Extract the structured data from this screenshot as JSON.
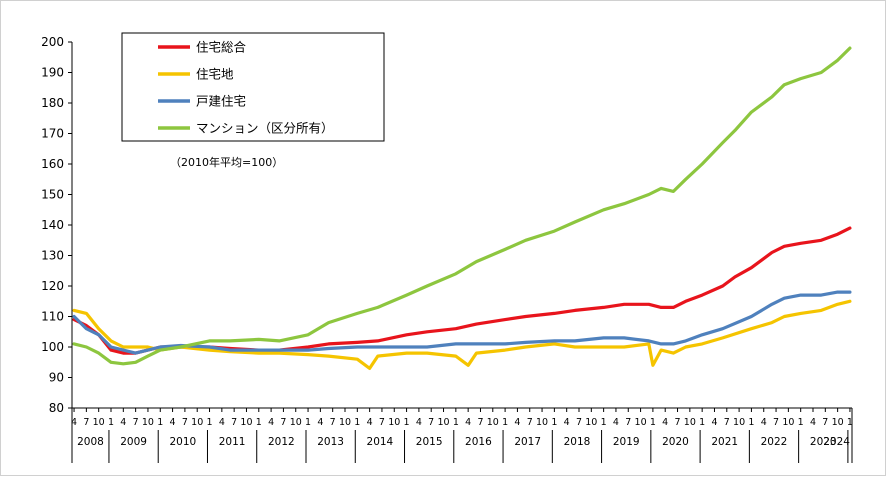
{
  "chart_data": {
    "type": "line",
    "note": "（2010年平均=100）",
    "ylim": [
      80,
      200
    ],
    "y_ticks": [
      80,
      90,
      100,
      110,
      120,
      130,
      140,
      150,
      160,
      170,
      180,
      190,
      200
    ],
    "grid": false,
    "legend_position": "top-left",
    "x_start": "2008-04",
    "x_end": "2024-01",
    "month_tick_labels": [
      "4",
      "7",
      "10",
      "1"
    ],
    "year_labels": [
      "2008",
      "2009",
      "2010",
      "2011",
      "2012",
      "2013",
      "2014",
      "2015",
      "2016",
      "2017",
      "2018",
      "2019",
      "2020",
      "2021",
      "2022",
      "2023",
      "2024"
    ],
    "series": [
      {
        "name": "住宅総合",
        "color": "#e8141c",
        "points": [
          [
            "2008-04",
            109
          ],
          [
            "2008-07",
            107
          ],
          [
            "2008-10",
            104
          ],
          [
            "2009-01",
            99
          ],
          [
            "2009-04",
            98
          ],
          [
            "2009-07",
            98
          ],
          [
            "2009-10",
            99
          ],
          [
            "2010-01",
            100
          ],
          [
            "2010-06",
            100
          ],
          [
            "2011-01",
            100
          ],
          [
            "2011-06",
            99.5
          ],
          [
            "2012-01",
            99
          ],
          [
            "2012-06",
            99
          ],
          [
            "2013-01",
            100
          ],
          [
            "2013-06",
            101
          ],
          [
            "2014-01",
            101.5
          ],
          [
            "2014-06",
            102
          ],
          [
            "2015-01",
            104
          ],
          [
            "2015-06",
            105
          ],
          [
            "2016-01",
            106
          ],
          [
            "2016-06",
            107.5
          ],
          [
            "2017-01",
            109
          ],
          [
            "2017-06",
            110
          ],
          [
            "2018-01",
            111
          ],
          [
            "2018-06",
            112
          ],
          [
            "2019-01",
            113
          ],
          [
            "2019-06",
            114
          ],
          [
            "2019-12",
            114
          ],
          [
            "2020-03",
            113
          ],
          [
            "2020-06",
            113
          ],
          [
            "2020-09",
            115
          ],
          [
            "2021-01",
            117
          ],
          [
            "2021-06",
            120
          ],
          [
            "2021-09",
            123
          ],
          [
            "2022-01",
            126
          ],
          [
            "2022-06",
            131
          ],
          [
            "2022-09",
            133
          ],
          [
            "2023-01",
            134
          ],
          [
            "2023-06",
            135
          ],
          [
            "2023-10",
            137
          ],
          [
            "2024-01",
            139
          ]
        ]
      },
      {
        "name": "住宅地",
        "color": "#f5c400",
        "points": [
          [
            "2008-04",
            112
          ],
          [
            "2008-07",
            111
          ],
          [
            "2008-10",
            106
          ],
          [
            "2009-01",
            102
          ],
          [
            "2009-04",
            100
          ],
          [
            "2009-07",
            100
          ],
          [
            "2009-10",
            100
          ],
          [
            "2010-01",
            99
          ],
          [
            "2010-06",
            100
          ],
          [
            "2011-01",
            99
          ],
          [
            "2011-06",
            98.5
          ],
          [
            "2012-01",
            98
          ],
          [
            "2012-06",
            98
          ],
          [
            "2013-01",
            97.5
          ],
          [
            "2013-06",
            97
          ],
          [
            "2014-01",
            96
          ],
          [
            "2014-04",
            93
          ],
          [
            "2014-06",
            97
          ],
          [
            "2015-01",
            98
          ],
          [
            "2015-06",
            98
          ],
          [
            "2016-01",
            97
          ],
          [
            "2016-04",
            94
          ],
          [
            "2016-06",
            98
          ],
          [
            "2017-01",
            99
          ],
          [
            "2017-06",
            100
          ],
          [
            "2018-01",
            101
          ],
          [
            "2018-06",
            100
          ],
          [
            "2019-01",
            100
          ],
          [
            "2019-06",
            100
          ],
          [
            "2019-12",
            101
          ],
          [
            "2020-01",
            94
          ],
          [
            "2020-03",
            99
          ],
          [
            "2020-06",
            98
          ],
          [
            "2020-09",
            100
          ],
          [
            "2021-01",
            101
          ],
          [
            "2021-06",
            103
          ],
          [
            "2022-01",
            106
          ],
          [
            "2022-06",
            108
          ],
          [
            "2022-09",
            110
          ],
          [
            "2023-01",
            111
          ],
          [
            "2023-06",
            112
          ],
          [
            "2023-10",
            114
          ],
          [
            "2024-01",
            115
          ]
        ]
      },
      {
        "name": "戸建住宅",
        "color": "#4f81bd",
        "points": [
          [
            "2008-04",
            110
          ],
          [
            "2008-07",
            106
          ],
          [
            "2008-10",
            104
          ],
          [
            "2009-01",
            100
          ],
          [
            "2009-04",
            99
          ],
          [
            "2009-07",
            98
          ],
          [
            "2009-10",
            99
          ],
          [
            "2010-01",
            100
          ],
          [
            "2010-06",
            100.5
          ],
          [
            "2011-01",
            100
          ],
          [
            "2011-06",
            99
          ],
          [
            "2012-01",
            99
          ],
          [
            "2012-06",
            99
          ],
          [
            "2013-01",
            99
          ],
          [
            "2013-06",
            99.5
          ],
          [
            "2014-01",
            100
          ],
          [
            "2014-06",
            100
          ],
          [
            "2015-01",
            100
          ],
          [
            "2015-06",
            100
          ],
          [
            "2016-01",
            101
          ],
          [
            "2016-06",
            101
          ],
          [
            "2017-01",
            101
          ],
          [
            "2017-06",
            101.5
          ],
          [
            "2018-01",
            102
          ],
          [
            "2018-06",
            102
          ],
          [
            "2019-01",
            103
          ],
          [
            "2019-06",
            103
          ],
          [
            "2019-12",
            102
          ],
          [
            "2020-03",
            101
          ],
          [
            "2020-06",
            101
          ],
          [
            "2020-09",
            102
          ],
          [
            "2021-01",
            104
          ],
          [
            "2021-06",
            106
          ],
          [
            "2022-01",
            110
          ],
          [
            "2022-06",
            114
          ],
          [
            "2022-09",
            116
          ],
          [
            "2023-01",
            117
          ],
          [
            "2023-06",
            117
          ],
          [
            "2023-10",
            118
          ],
          [
            "2024-01",
            118
          ]
        ]
      },
      {
        "name": "マンション（区分所有）",
        "color": "#8dc63f",
        "points": [
          [
            "2008-04",
            101
          ],
          [
            "2008-07",
            100
          ],
          [
            "2008-10",
            98
          ],
          [
            "2009-01",
            95
          ],
          [
            "2009-04",
            94.5
          ],
          [
            "2009-07",
            95
          ],
          [
            "2009-10",
            97
          ],
          [
            "2010-01",
            99
          ],
          [
            "2010-06",
            100
          ],
          [
            "2011-01",
            102
          ],
          [
            "2011-06",
            102
          ],
          [
            "2012-01",
            102.5
          ],
          [
            "2012-06",
            102
          ],
          [
            "2013-01",
            104
          ],
          [
            "2013-06",
            108
          ],
          [
            "2014-01",
            111
          ],
          [
            "2014-06",
            113
          ],
          [
            "2015-01",
            117
          ],
          [
            "2015-06",
            120
          ],
          [
            "2016-01",
            124
          ],
          [
            "2016-06",
            128
          ],
          [
            "2017-01",
            132
          ],
          [
            "2017-06",
            135
          ],
          [
            "2018-01",
            138
          ],
          [
            "2018-06",
            141
          ],
          [
            "2019-01",
            145
          ],
          [
            "2019-06",
            147
          ],
          [
            "2019-12",
            150
          ],
          [
            "2020-03",
            152
          ],
          [
            "2020-06",
            151
          ],
          [
            "2020-09",
            155
          ],
          [
            "2021-01",
            160
          ],
          [
            "2021-06",
            167
          ],
          [
            "2021-09",
            171
          ],
          [
            "2022-01",
            177
          ],
          [
            "2022-06",
            182
          ],
          [
            "2022-09",
            186
          ],
          [
            "2023-01",
            188
          ],
          [
            "2023-06",
            190
          ],
          [
            "2023-10",
            194
          ],
          [
            "2024-01",
            198
          ]
        ]
      }
    ]
  }
}
